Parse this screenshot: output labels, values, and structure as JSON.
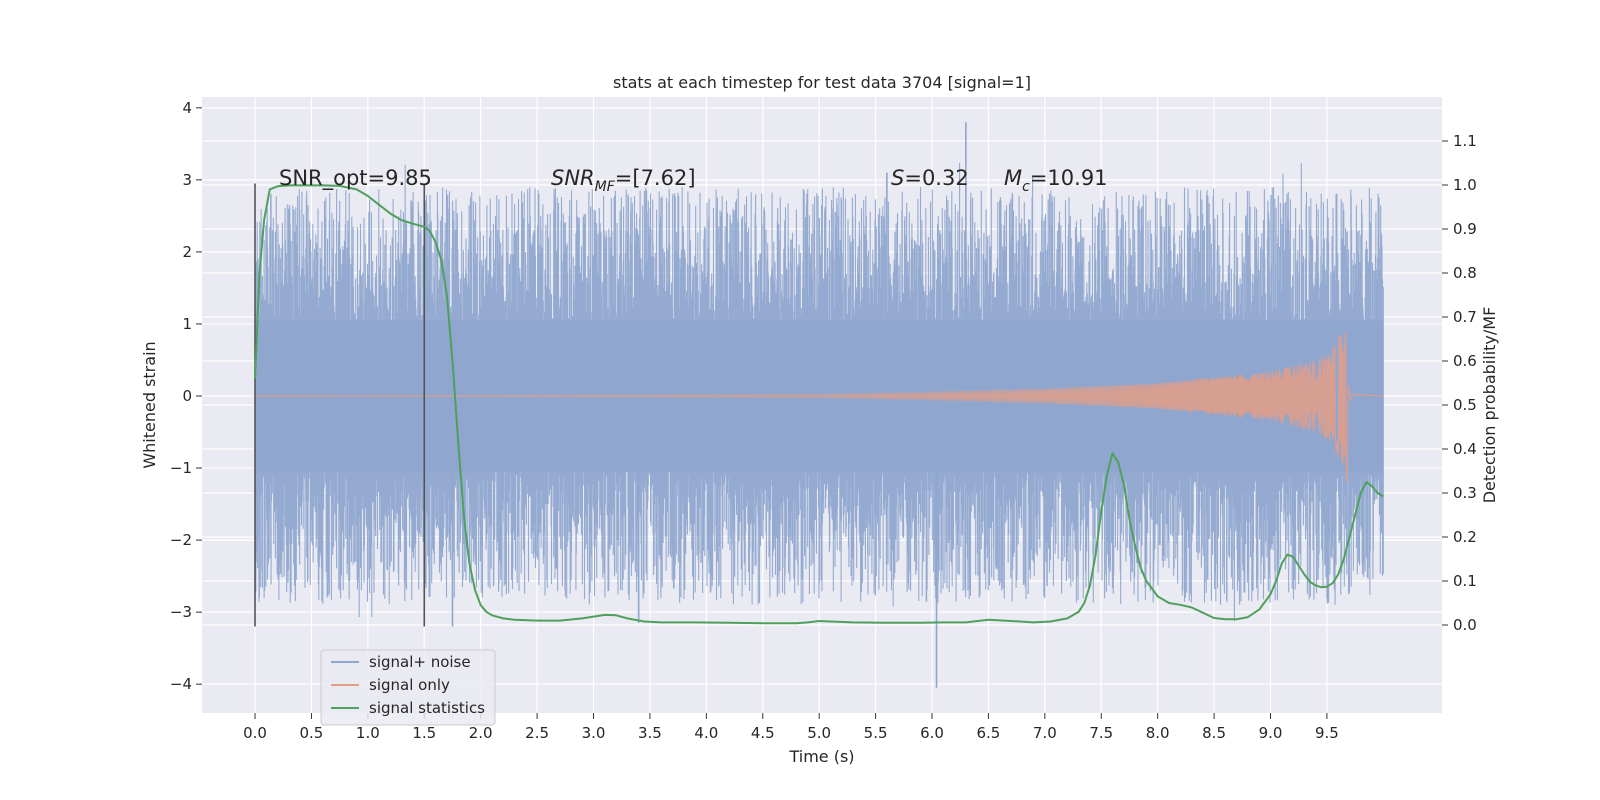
{
  "chart_data": {
    "type": "line",
    "title": "stats at each timestep for test data 3704 [signal=1]",
    "xlabel": "Time (s)",
    "ylabel_left": "Whitened strain",
    "ylabel_right": "Detection probability/MF",
    "xlim": [
      -0.47,
      10.52
    ],
    "ylim_left": [
      -4.4,
      4.15
    ],
    "ylim_right": [
      -0.2,
      1.2
    ],
    "x_ticks": [
      0.0,
      0.5,
      1.0,
      1.5,
      2.0,
      2.5,
      3.0,
      3.5,
      4.0,
      4.5,
      5.0,
      5.5,
      6.0,
      6.5,
      7.0,
      7.5,
      8.0,
      8.5,
      9.0,
      9.5
    ],
    "x_tick_labels": [
      "0.0",
      "0.5",
      "1.0",
      "1.5",
      "2.0",
      "2.5",
      "3.0",
      "3.5",
      "4.0",
      "4.5",
      "5.0",
      "5.5",
      "6.0",
      "6.5",
      "7.0",
      "7.5",
      "8.0",
      "8.5",
      "9.0",
      "9.5"
    ],
    "y_left_ticks": [
      -4,
      -3,
      -2,
      -1,
      0,
      1,
      2,
      3,
      4
    ],
    "y_left_tick_labels": [
      "−4",
      "−3",
      "−2",
      "−1",
      "0",
      "1",
      "2",
      "3",
      "4"
    ],
    "y_right_ticks": [
      0.0,
      0.1,
      0.2,
      0.3,
      0.4,
      0.5,
      0.6,
      0.7,
      0.8,
      0.9,
      1.0,
      1.1
    ],
    "y_right_tick_labels": [
      "0.0",
      "0.1",
      "0.2",
      "0.3",
      "0.4",
      "0.5",
      "0.6",
      "0.7",
      "0.8",
      "0.9",
      "1.0",
      "1.1"
    ],
    "grid": true,
    "legend_position": "lower-left",
    "vertical_markers": [
      {
        "x": 0.0,
        "y_range": [
          -3.2,
          2.95
        ]
      },
      {
        "x": 1.5,
        "y_range": [
          -3.2,
          2.95
        ]
      }
    ],
    "annotations": {
      "snr_opt": "SNR_opt=9.85",
      "snr_mf_main": "SNR",
      "snr_mf_sub": "MF",
      "snr_mf_value": "=[7.62]",
      "s_symbol": "S",
      "s_value": "=0.32",
      "mc_symbol": "M",
      "mc_sub": "c",
      "mc_value": "=10.91"
    },
    "series": [
      {
        "name": "signal+ noise",
        "color": "#8fa6cf",
        "axis": "left",
        "description_envelope": {
          "x_range": [
            0.0,
            10.0
          ],
          "typical_max": 1.6,
          "typical_min": -1.6,
          "peak_max": 3.8,
          "peak_min": -4.05,
          "notable_peaks": [
            [
              6.3,
              3.8
            ],
            [
              6.04,
              -4.05
            ],
            [
              1.75,
              -3.2
            ],
            [
              5.6,
              3.1
            ],
            [
              3.4,
              -3.15
            ]
          ]
        }
      },
      {
        "name": "signal only",
        "color": "#e39e86",
        "axis": "left",
        "chirp": {
          "start": 0.0,
          "merger": 9.67,
          "end": 10.0,
          "peak_amplitude": 1.05,
          "envelope": [
            [
              5.0,
              0.02
            ],
            [
              6.0,
              0.05
            ],
            [
              7.0,
              0.1
            ],
            [
              8.0,
              0.18
            ],
            [
              9.0,
              0.34
            ],
            [
              9.4,
              0.5
            ],
            [
              9.55,
              0.66
            ],
            [
              9.65,
              1.05
            ]
          ]
        }
      },
      {
        "name": "signal statistics",
        "color": "#4fa05c",
        "axis": "right",
        "x": [
          0.0,
          0.04,
          0.08,
          0.13,
          0.2,
          0.3,
          0.45,
          0.6,
          0.75,
          0.9,
          1.0,
          1.1,
          1.2,
          1.3,
          1.4,
          1.5,
          1.55,
          1.6,
          1.65,
          1.7,
          1.75,
          1.8,
          1.85,
          1.9,
          1.95,
          2.0,
          2.05,
          2.1,
          2.2,
          2.3,
          2.5,
          2.7,
          2.9,
          3.0,
          3.1,
          3.2,
          3.3,
          3.45,
          3.6,
          3.9,
          4.2,
          4.5,
          4.8,
          4.9,
          5.0,
          5.1,
          5.3,
          5.6,
          5.9,
          6.1,
          6.3,
          6.5,
          6.7,
          6.9,
          7.05,
          7.2,
          7.3,
          7.35,
          7.4,
          7.45,
          7.5,
          7.55,
          7.6,
          7.65,
          7.7,
          7.75,
          7.8,
          7.85,
          7.9,
          8.0,
          8.1,
          8.2,
          8.3,
          8.4,
          8.5,
          8.6,
          8.7,
          8.8,
          8.9,
          9.0,
          9.05,
          9.1,
          9.15,
          9.2,
          9.25,
          9.3,
          9.35,
          9.4,
          9.45,
          9.5,
          9.55,
          9.6,
          9.65,
          9.7,
          9.75,
          9.8,
          9.85,
          9.9,
          9.95,
          10.0
        ],
        "values": [
          0.56,
          0.8,
          0.92,
          0.99,
          0.997,
          0.999,
          0.999,
          0.999,
          0.998,
          0.99,
          0.975,
          0.955,
          0.935,
          0.92,
          0.912,
          0.905,
          0.895,
          0.87,
          0.83,
          0.75,
          0.6,
          0.42,
          0.25,
          0.14,
          0.08,
          0.045,
          0.03,
          0.022,
          0.015,
          0.012,
          0.01,
          0.01,
          0.015,
          0.019,
          0.023,
          0.022,
          0.015,
          0.008,
          0.006,
          0.006,
          0.005,
          0.004,
          0.004,
          0.006,
          0.009,
          0.008,
          0.006,
          0.005,
          0.005,
          0.006,
          0.006,
          0.012,
          0.009,
          0.006,
          0.008,
          0.015,
          0.03,
          0.05,
          0.09,
          0.16,
          0.26,
          0.34,
          0.39,
          0.37,
          0.32,
          0.24,
          0.18,
          0.13,
          0.1,
          0.065,
          0.05,
          0.046,
          0.04,
          0.028,
          0.016,
          0.013,
          0.013,
          0.018,
          0.035,
          0.07,
          0.1,
          0.14,
          0.16,
          0.155,
          0.135,
          0.115,
          0.098,
          0.09,
          0.086,
          0.087,
          0.095,
          0.115,
          0.15,
          0.2,
          0.25,
          0.3,
          0.325,
          0.315,
          0.3,
          0.292
        ]
      }
    ]
  }
}
